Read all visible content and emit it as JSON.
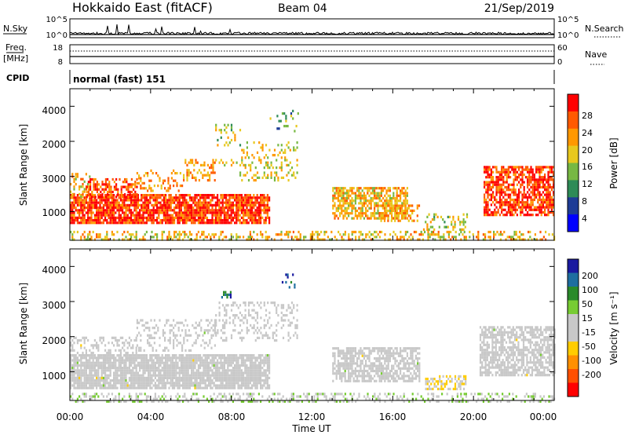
{
  "header": {
    "station": "Hokkaido East (fitACF)",
    "beam": "Beam 04",
    "date": "21/Sep/2019"
  },
  "status_panel": {
    "nsky_label": "N.Sky",
    "nsky_ticks": [
      "10^5",
      "10^0"
    ],
    "nsearch_label": "N.Search",
    "nsearch_ticks": [
      "10^5",
      "10^0"
    ],
    "freq_label": "Freq.",
    "freq_unit": "[MHz]",
    "freq_ticks": [
      "18",
      "8"
    ],
    "nave_label": "Nave",
    "nave_ticks": [
      "60",
      "0"
    ],
    "cpid_label": "CPID",
    "cpid_value": "normal (fast) 151"
  },
  "colors": {
    "power_scale": [
      "#0000ff",
      "#1e3c96",
      "#2e8b57",
      "#77b843",
      "#e8c81e",
      "#ff9800",
      "#ff5a00",
      "#ff0000"
    ],
    "velocity_scale": [
      "#ff0000",
      "#ff5000",
      "#ff9000",
      "#ffcc00",
      "#c8c8c8",
      "#c8c8c8",
      "#77cc33",
      "#2a8a2a",
      "#1e6ea0",
      "#1a1aa0"
    ],
    "ground_scatter": "#c8c8c8"
  },
  "chart_data": [
    {
      "type": "heatmap",
      "name": "power",
      "xlabel": "Time UT",
      "ylabel": "Slant Range [km]",
      "x_tick_labels": [
        "00:00",
        "04:00",
        "08:00",
        "12:00",
        "16:00",
        "20:00",
        "00:00"
      ],
      "xlim_hours": [
        0,
        24
      ],
      "y_tick_labels": [
        "1000",
        "2000",
        "3000",
        "4000"
      ],
      "ylim_km": [
        180,
        4500
      ],
      "colorbar": {
        "label": "Power [dB]",
        "ticks": [
          "4",
          "8",
          "12",
          "16",
          "20",
          "24",
          "28"
        ],
        "range": [
          0,
          32
        ]
      },
      "regions": [
        {
          "t0": 0.0,
          "t1": 9.9,
          "r0": 700,
          "r1": 1500,
          "value": 28,
          "density": 0.85
        },
        {
          "t0": 0.0,
          "t1": 1.0,
          "r0": 1400,
          "r1": 2100,
          "value": 20,
          "density": 0.35
        },
        {
          "t0": 0.8,
          "t1": 3.3,
          "r0": 1400,
          "r1": 1950,
          "value": 26,
          "density": 0.55
        },
        {
          "t0": 3.3,
          "t1": 5.6,
          "r0": 1600,
          "r1": 2200,
          "value": 22,
          "density": 0.3
        },
        {
          "t0": 5.6,
          "t1": 7.2,
          "r0": 1900,
          "r1": 2500,
          "value": 22,
          "density": 0.35
        },
        {
          "t0": 7.2,
          "t1": 8.3,
          "r0": 2300,
          "r1": 2500,
          "value": 18,
          "density": 0.3
        },
        {
          "t0": 7.2,
          "t1": 8.4,
          "r0": 2900,
          "r1": 3500,
          "value": 16,
          "density": 0.2
        },
        {
          "t0": 8.4,
          "t1": 11.3,
          "r0": 1900,
          "r1": 3000,
          "value": 18,
          "density": 0.25
        },
        {
          "t0": 9.9,
          "t1": 11.3,
          "r0": 3300,
          "r1": 3900,
          "value": 12,
          "density": 0.15
        },
        {
          "t0": 13.0,
          "t1": 16.7,
          "r0": 800,
          "r1": 1700,
          "value": 20,
          "density": 0.65
        },
        {
          "t0": 15.3,
          "t1": 17.3,
          "r0": 700,
          "r1": 1200,
          "value": 22,
          "density": 0.5
        },
        {
          "t0": 17.5,
          "t1": 19.8,
          "r0": 500,
          "r1": 950,
          "value": 16,
          "density": 0.3
        },
        {
          "t0": 20.5,
          "t1": 24.0,
          "r0": 900,
          "r1": 2300,
          "value": 28,
          "density": 0.7
        },
        {
          "t0": 0.0,
          "t1": 24.0,
          "r0": 180,
          "r1": 450,
          "value": 20,
          "density": 0.4
        }
      ]
    },
    {
      "type": "heatmap",
      "name": "velocity",
      "xlabel": "Time UT",
      "ylabel": "Slant Range [km]",
      "x_tick_labels": [
        "00:00",
        "04:00",
        "08:00",
        "12:00",
        "16:00",
        "20:00",
        "00:00"
      ],
      "xlim_hours": [
        0,
        24
      ],
      "y_tick_labels": [
        "1000",
        "2000",
        "3000",
        "4000"
      ],
      "ylim_km": [
        180,
        4500
      ],
      "colorbar": {
        "label": "Velocity [m s⁻¹]",
        "ticks": [
          "200",
          "100",
          "50",
          "15",
          "-15",
          "-50",
          "-100",
          "-200"
        ],
        "range": [
          -250,
          250
        ]
      },
      "regions": [
        {
          "t0": 0.0,
          "t1": 9.9,
          "r0": 500,
          "r1": 1500,
          "value": 0,
          "density": 0.85
        },
        {
          "t0": 0.0,
          "t1": 3.3,
          "r0": 1400,
          "r1": 2000,
          "value": 0,
          "density": 0.45
        },
        {
          "t0": 3.3,
          "t1": 7.2,
          "r0": 1600,
          "r1": 2500,
          "value": 0,
          "density": 0.3
        },
        {
          "t0": 7.2,
          "t1": 11.3,
          "r0": 1900,
          "r1": 3000,
          "value": 0,
          "density": 0.25
        },
        {
          "t0": 7.5,
          "t1": 8.0,
          "r0": 3100,
          "r1": 3300,
          "value": 160,
          "density": 0.6
        },
        {
          "t0": 10.5,
          "t1": 11.2,
          "r0": 3300,
          "r1": 3800,
          "value": 180,
          "density": 0.2
        },
        {
          "t0": 13.0,
          "t1": 17.3,
          "r0": 700,
          "r1": 1700,
          "value": 0,
          "density": 0.7
        },
        {
          "t0": 17.6,
          "t1": 19.6,
          "r0": 500,
          "r1": 900,
          "value": -40,
          "density": 0.55
        },
        {
          "t0": 20.3,
          "t1": 24.0,
          "r0": 900,
          "r1": 2300,
          "value": 0,
          "density": 0.7
        },
        {
          "t0": 0.0,
          "t1": 24.0,
          "r0": 180,
          "r1": 400,
          "value": 30,
          "density": 0.35
        }
      ]
    }
  ]
}
